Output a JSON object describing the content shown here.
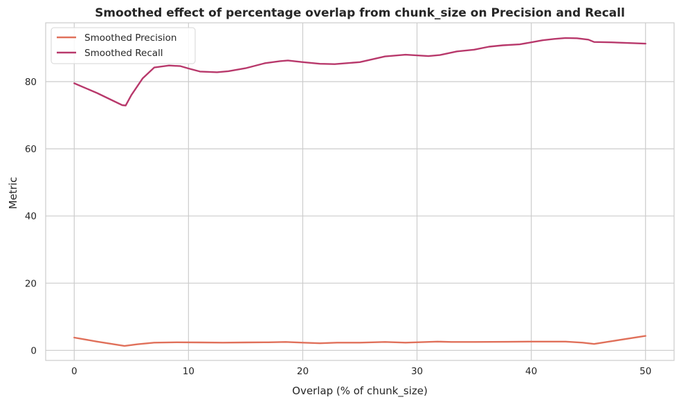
{
  "chart_data": {
    "type": "line",
    "title": "Smoothed effect of percentage overlap from chunk_size on Precision and Recall",
    "xlabel": "Overlap (% of chunk_size)",
    "ylabel": "Metric",
    "xlim": [
      -2.5,
      52.5
    ],
    "ylim": [
      -3,
      97.5
    ],
    "xticks": [
      0,
      10,
      20,
      30,
      40,
      50
    ],
    "yticks": [
      0,
      20,
      40,
      60,
      80
    ],
    "grid": true,
    "legend_position": "top-left",
    "series": [
      {
        "name": "Smoothed Precision",
        "color": "#e0705a",
        "points": [
          [
            0,
            3.8
          ],
          [
            2,
            2.6
          ],
          [
            4.4,
            1.3
          ],
          [
            5.5,
            1.8
          ],
          [
            7,
            2.3
          ],
          [
            9,
            2.4
          ],
          [
            11,
            2.35
          ],
          [
            13,
            2.3
          ],
          [
            15,
            2.35
          ],
          [
            17,
            2.4
          ],
          [
            18.5,
            2.5
          ],
          [
            20,
            2.3
          ],
          [
            21.5,
            2.1
          ],
          [
            23,
            2.3
          ],
          [
            25,
            2.3
          ],
          [
            27.2,
            2.5
          ],
          [
            29,
            2.3
          ],
          [
            31.8,
            2.6
          ],
          [
            33,
            2.5
          ],
          [
            35,
            2.5
          ],
          [
            38,
            2.55
          ],
          [
            40,
            2.6
          ],
          [
            43,
            2.6
          ],
          [
            44.5,
            2.3
          ],
          [
            45.5,
            1.9
          ],
          [
            47,
            2.7
          ],
          [
            50,
            4.3
          ]
        ]
      },
      {
        "name": "Smoothed Recall",
        "color": "#b8386b",
        "points": [
          [
            0,
            79.5
          ],
          [
            2,
            76.6
          ],
          [
            4.2,
            73.0
          ],
          [
            4.5,
            72.9
          ],
          [
            5,
            76
          ],
          [
            6,
            81
          ],
          [
            7,
            84.2
          ],
          [
            8.3,
            84.8
          ],
          [
            9.3,
            84.6
          ],
          [
            10,
            83.9
          ],
          [
            11,
            83
          ],
          [
            12.5,
            82.8
          ],
          [
            13.5,
            83.1
          ],
          [
            15,
            84
          ],
          [
            16.7,
            85.5
          ],
          [
            18,
            86.1
          ],
          [
            18.7,
            86.3
          ],
          [
            20,
            85.8
          ],
          [
            21.5,
            85.3
          ],
          [
            22.8,
            85.2
          ],
          [
            25,
            85.8
          ],
          [
            27.2,
            87.5
          ],
          [
            29,
            88.0
          ],
          [
            30,
            87.8
          ],
          [
            31,
            87.6
          ],
          [
            32,
            87.9
          ],
          [
            33.5,
            89
          ],
          [
            35,
            89.5
          ],
          [
            36.3,
            90.4
          ],
          [
            37.5,
            90.8
          ],
          [
            39,
            91.1
          ],
          [
            40,
            91.7
          ],
          [
            41,
            92.3
          ],
          [
            42,
            92.7
          ],
          [
            43,
            93.0
          ],
          [
            44,
            92.9
          ],
          [
            45,
            92.5
          ],
          [
            45.5,
            91.8
          ],
          [
            47,
            91.7
          ],
          [
            50,
            91.3
          ]
        ]
      }
    ]
  }
}
